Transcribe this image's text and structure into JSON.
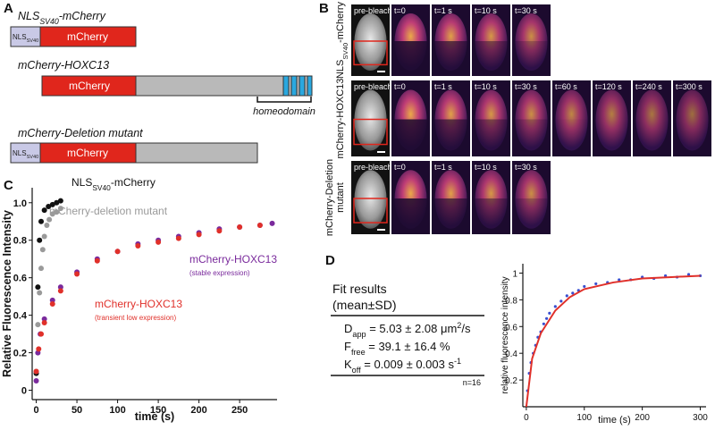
{
  "panel_labels": [
    "A",
    "B",
    "C",
    "D"
  ],
  "panel_a": {
    "constructs": [
      {
        "title": [
          {
            "text": "NLS"
          },
          {
            "text": "SV40",
            "sub": true
          },
          {
            "text": "-mCherry"
          }
        ],
        "domains": [
          [
            {
              "text": "NLS"
            },
            {
              "text": "SV40",
              "sub": true
            }
          ],
          [
            {
              "text": "mCherry"
            }
          ]
        ]
      },
      {
        "title": [
          {
            "text": "mCherry-HOXC13"
          }
        ],
        "domains": [
          [
            {
              "text": "mCherry"
            }
          ]
        ],
        "annotation": "homeodomain"
      },
      {
        "title": [
          {
            "text": "mCherry-Deletion mutant"
          }
        ],
        "domains": [
          [
            {
              "text": "NLS"
            },
            {
              "text": "SV40",
              "sub": true
            }
          ],
          [
            {
              "text": "mCherry"
            }
          ]
        ]
      }
    ]
  },
  "panel_b": {
    "rows": [
      {
        "label": [
          [
            {
              "text": "NLS"
            },
            {
              "text": "SV40",
              "sub": true
            },
            {
              "text": "-mCherry"
            }
          ]
        ],
        "frames": [
          "pre-bleach",
          "t=0",
          "t=1 s",
          "t=10 s",
          "t=30 s"
        ]
      },
      {
        "label": [
          [
            {
              "text": "mCherry-HOXC13"
            }
          ]
        ],
        "frames": [
          "pre-bleach",
          "t=0",
          "t=1 s",
          "t=10 s",
          "t=30 s",
          "t=60 s",
          "t=120 s",
          "t=240 s",
          "t=300 s"
        ]
      },
      {
        "label": [
          [
            {
              "text": "mCherry-Deletion"
            }
          ],
          [
            {
              "text": "mutant"
            }
          ]
        ],
        "frames": [
          "pre-bleach",
          "t=0",
          "t=1 s",
          "t=10 s",
          "t=30 s"
        ]
      }
    ]
  },
  "panel_d": {
    "fit_results": {
      "title": "Fit results",
      "subtitle": "(mean±SD)",
      "rows": [
        [
          {
            "text": "D"
          },
          {
            "text": "app",
            "sub": true
          },
          {
            "text": " = 5.03 ± 2.08 μm"
          },
          {
            "text": "2",
            "sup": true
          },
          {
            "text": "/s"
          }
        ],
        [
          {
            "text": "F"
          },
          {
            "text": "free",
            "sub": true
          },
          {
            "text": " = 39.1 ± 16.4 %"
          }
        ],
        [
          {
            "text": "K"
          },
          {
            "text": "off",
            "sub": true
          },
          {
            "text": " = 0.009 ± 0.003 s"
          },
          {
            "text": "-1",
            "sup": true
          }
        ]
      ],
      "n": "n=16"
    }
  },
  "chart_data": [
    {
      "type": "scatter",
      "xlabel": "time (s)",
      "ylabel": "Relative Fluorescence Intensity",
      "xlim": [
        -5,
        296
      ],
      "ylim": [
        -0.05,
        1.08
      ],
      "xticks": [
        0,
        50,
        100,
        150,
        200,
        250
      ],
      "yticks": [
        0,
        0.2,
        0.4,
        0.6,
        0.8,
        {
          "value": 1,
          "label": "1.0"
        }
      ],
      "series": [
        {
          "name": [
            {
              "text": "NLS"
            },
            {
              "text": "SV40",
              "sub": true
            },
            {
              "text": "-mCherry"
            }
          ],
          "color": "#111111",
          "x": [
            0,
            2,
            4,
            6,
            10,
            15,
            20,
            25,
            30
          ],
          "values": [
            0.09,
            0.55,
            0.8,
            0.9,
            0.96,
            0.98,
            0.99,
            1.0,
            1.01
          ]
        },
        {
          "name": [
            {
              "text": "mCherry-deletion mutant"
            }
          ],
          "color": "#9a9a9a",
          "x": [
            0,
            2,
            4,
            6,
            8,
            10,
            13,
            16,
            20,
            25,
            30
          ],
          "values": [
            0.1,
            0.35,
            0.52,
            0.65,
            0.75,
            0.82,
            0.88,
            0.91,
            0.94,
            0.95,
            0.97
          ]
        },
        {
          "name": [
            {
              "text": "mCherry-HOXC13"
            }
          ],
          "note": "(stable expression)",
          "color": "#7a2a9c",
          "x": [
            0,
            2,
            5,
            10,
            20,
            30,
            50,
            75,
            100,
            125,
            150,
            175,
            200,
            225,
            250,
            275,
            290
          ],
          "values": [
            0.05,
            0.2,
            0.3,
            0.38,
            0.48,
            0.55,
            0.63,
            0.7,
            0.74,
            0.78,
            0.8,
            0.82,
            0.84,
            0.86,
            0.87,
            0.88,
            0.89
          ]
        },
        {
          "name": [
            {
              "text": "mCherry-HOXC13"
            }
          ],
          "note": "(transient low expression)",
          "color": "#e0302a",
          "x": [
            0,
            3,
            6,
            10,
            20,
            30,
            50,
            75,
            100,
            125,
            150,
            175,
            200,
            225,
            250,
            275
          ],
          "values": [
            0.1,
            0.22,
            0.3,
            0.36,
            0.46,
            0.53,
            0.62,
            0.69,
            0.74,
            0.77,
            0.79,
            0.81,
            0.83,
            0.85,
            0.87,
            0.88
          ]
        }
      ]
    },
    {
      "type": "scatter",
      "xlabel": "time (s)",
      "ylabel": "relative fluorescence intensity",
      "xlim": [
        -6,
        310
      ],
      "ylim": [
        0,
        1.07
      ],
      "xticks": [
        0,
        100,
        200,
        300
      ],
      "yticks": [
        0.2,
        0.4,
        0.6,
        0.8,
        1
      ],
      "series": [
        {
          "color": "#3a4fd0",
          "x": [
            2,
            5,
            8,
            12,
            16,
            20,
            25,
            30,
            35,
            40,
            50,
            60,
            70,
            80,
            90,
            100,
            120,
            140,
            160,
            180,
            200,
            220,
            240,
            260,
            280,
            300
          ],
          "values": [
            0.12,
            0.25,
            0.33,
            0.4,
            0.46,
            0.52,
            0.56,
            0.62,
            0.66,
            0.7,
            0.75,
            0.79,
            0.83,
            0.85,
            0.87,
            0.9,
            0.92,
            0.93,
            0.95,
            0.95,
            0.97,
            0.96,
            0.98,
            0.97,
            0.99,
            0.98
          ]
        },
        {
          "color": "#e0302a",
          "line": true,
          "x": [
            0,
            10,
            25,
            50,
            75,
            100,
            150,
            200,
            250,
            300
          ],
          "values": [
            0,
            0.36,
            0.55,
            0.72,
            0.82,
            0.88,
            0.93,
            0.96,
            0.97,
            0.98
          ]
        }
      ]
    }
  ]
}
